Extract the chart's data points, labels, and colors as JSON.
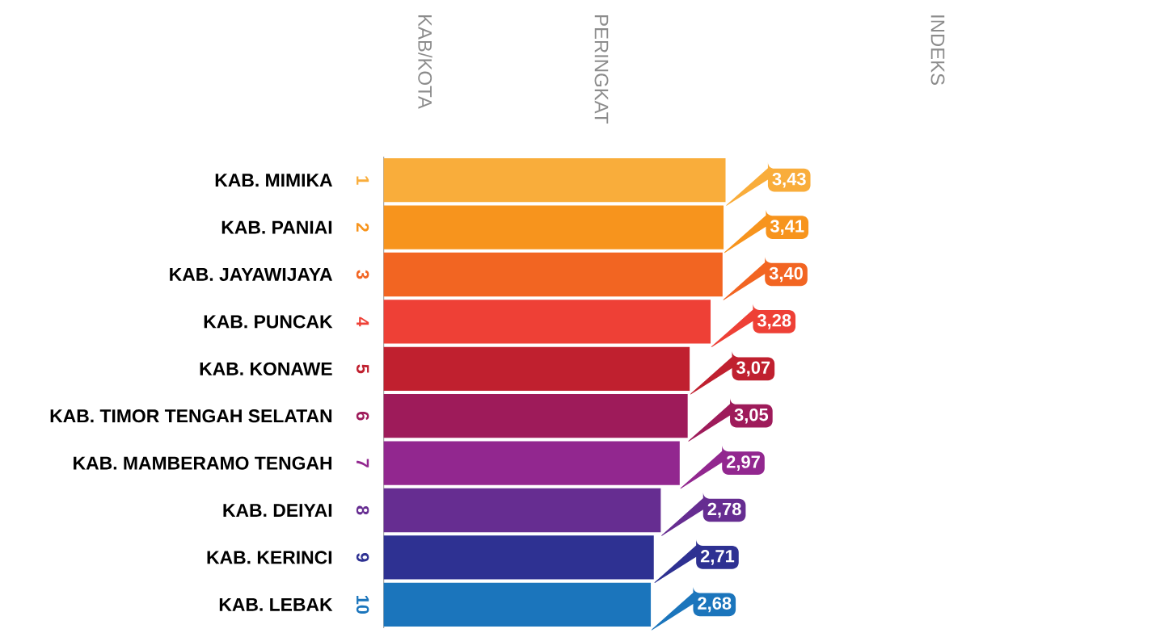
{
  "chart_data": {
    "type": "bar",
    "orientation": "horizontal",
    "categories": [
      "KAB. MIMIKA",
      "KAB. PANIAI",
      "KAB. JAYAWIJAYA",
      "KAB. PUNCAK",
      "KAB. KONAWE",
      "KAB. TIMOR TENGAH SELATAN",
      "KAB. MAMBERAMO TENGAH",
      "KAB. DEIYAI",
      "KAB. KERINCI",
      "KAB. LEBAK"
    ],
    "values": [
      3.43,
      3.41,
      3.4,
      3.28,
      3.07,
      3.05,
      2.97,
      2.78,
      2.71,
      2.68
    ],
    "value_labels": [
      "3,43",
      "3,41",
      "3,40",
      "3,28",
      "3,07",
      "3,05",
      "2,97",
      "2,78",
      "2,71",
      "2,68"
    ],
    "colors": [
      "#f9ad3b",
      "#f7941d",
      "#f26522",
      "#ee4036",
      "#c0202f",
      "#9e1b5a",
      "#92278f",
      "#662d91",
      "#2e3192",
      "#1b75bc"
    ],
    "annotations": [
      "KAB/KOTA",
      "PERINGKAT",
      "INDEKS",
      "1",
      "2",
      "3",
      "4",
      "5",
      "6",
      "7",
      "8",
      "9",
      "10"
    ]
  }
}
